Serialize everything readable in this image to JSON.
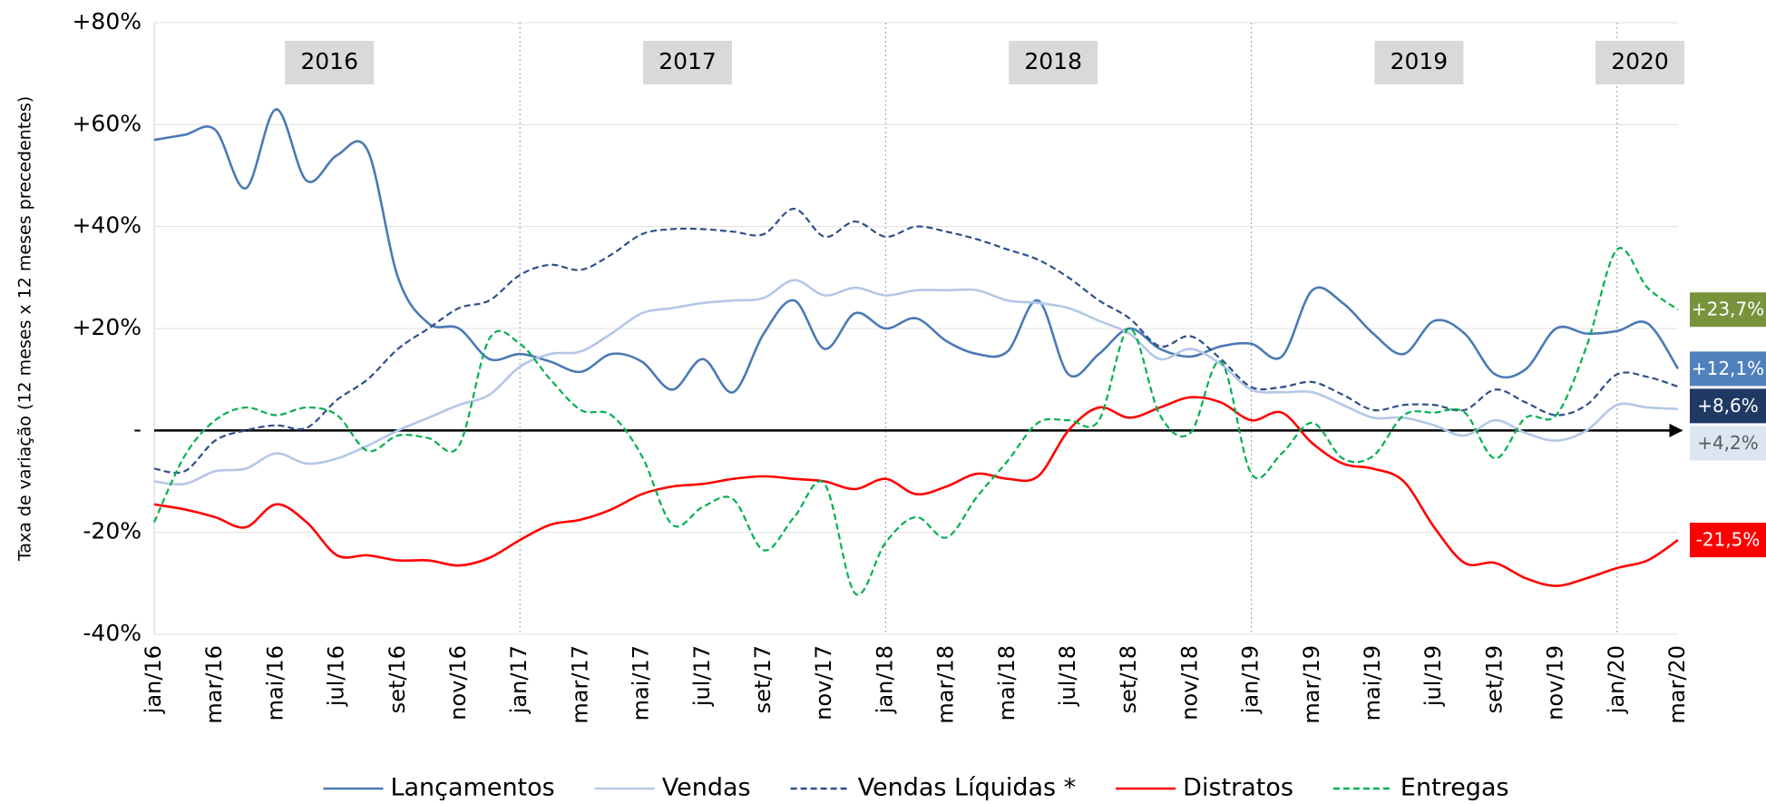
{
  "chart_data": {
    "type": "line",
    "y_label": "Taxa de variação (12 meses x 12 meses precedentes)",
    "periods": [
      "2016",
      "2017",
      "2018",
      "2019",
      "2020"
    ],
    "categories": [
      "jan/16",
      null,
      "mar/16",
      null,
      "mai/16",
      null,
      "jul/16",
      null,
      "set/16",
      null,
      "nov/16",
      null,
      "jan/17",
      null,
      "mar/17",
      null,
      "mai/17",
      null,
      "jul/17",
      null,
      "set/17",
      null,
      "nov/17",
      null,
      "jan/18",
      null,
      "mar/18",
      null,
      "mai/18",
      null,
      "jul/18",
      null,
      "set/18",
      null,
      "nov/18",
      null,
      "jan/19",
      null,
      "mar/19",
      null,
      "mai/19",
      null,
      "jul/19",
      null,
      "set/19",
      null,
      "nov/19",
      null,
      "jan/20",
      null,
      "mar/20"
    ],
    "ylim": [
      -40,
      80
    ],
    "yticks": [
      {
        "value": -40,
        "label": "-40%"
      },
      {
        "value": -20,
        "label": "-20%"
      },
      {
        "value": 0,
        "label": "-"
      },
      {
        "value": 20,
        "label": "+20%"
      },
      {
        "value": 40,
        "label": "+40%"
      },
      {
        "value": 60,
        "label": "+60%"
      },
      {
        "value": 80,
        "label": "+80%"
      }
    ],
    "grid": true,
    "series": [
      {
        "name": "Lançamentos",
        "color": "#4a7ab5",
        "dashed": false,
        "label_color": "#4f81bd",
        "label_text_color": "#ffffff",
        "values": [
          57,
          58,
          59,
          47.5,
          63,
          49,
          54,
          55,
          30,
          21,
          20,
          14,
          15,
          13.5,
          11.5,
          15,
          13.5,
          8,
          14,
          7.5,
          19,
          25.5,
          16,
          23,
          20,
          22,
          17.5,
          15,
          15.5,
          25.5,
          11,
          15,
          20,
          16,
          14.5,
          16.5,
          17,
          14.5,
          27.5,
          25,
          19,
          15,
          21.5,
          19,
          11,
          12,
          20,
          19,
          19.5,
          21,
          12.1
        ],
        "value_labels": [
          null,
          null,
          null,
          null,
          null,
          null,
          null,
          null,
          null,
          null,
          null,
          null,
          null,
          null,
          null,
          null,
          null,
          null,
          null,
          null,
          null,
          null,
          null,
          null,
          null,
          null,
          null,
          null,
          null,
          null,
          null,
          null,
          null,
          null,
          null,
          null,
          null,
          null,
          null,
          null,
          null,
          null,
          null,
          null,
          null,
          null,
          null,
          null,
          null,
          null,
          "+12,1%"
        ]
      },
      {
        "name": "Vendas",
        "color": "#b4c7e7",
        "dashed": false,
        "label_color": "#dce6f2",
        "label_text_color": "#595959",
        "values": [
          -10,
          -10.5,
          -8,
          -7.5,
          -4.5,
          -6.5,
          -5.5,
          -3,
          0,
          2.5,
          5,
          7,
          12.5,
          15,
          15.5,
          19,
          23,
          24,
          25,
          25.5,
          26,
          29.5,
          26.5,
          28,
          26.5,
          27.5,
          27.5,
          27.5,
          25.5,
          25,
          24,
          21.5,
          19,
          14,
          16,
          13,
          8,
          7.5,
          7.5,
          5,
          2.5,
          2.5,
          1,
          -1,
          2,
          -0.5,
          -2,
          0,
          5,
          4.5,
          4.2
        ],
        "value_labels": [
          null,
          null,
          null,
          null,
          null,
          null,
          null,
          null,
          null,
          null,
          null,
          null,
          null,
          null,
          null,
          null,
          null,
          null,
          null,
          null,
          null,
          null,
          null,
          null,
          null,
          null,
          null,
          null,
          null,
          null,
          null,
          null,
          null,
          null,
          null,
          null,
          null,
          null,
          null,
          null,
          null,
          null,
          null,
          null,
          null,
          null,
          null,
          null,
          null,
          null,
          "+4,2%"
        ]
      },
      {
        "name": "Vendas Líquidas *",
        "color": "#2f4f8a",
        "dashed": true,
        "label_color": "#1f3864",
        "label_text_color": "#ffffff",
        "values": [
          -7.5,
          -8,
          -2,
          0,
          1,
          0.5,
          6,
          10,
          16,
          20,
          24,
          25.5,
          30.5,
          32.5,
          31.5,
          34.5,
          38.5,
          39.5,
          39.5,
          39,
          38.5,
          43.5,
          38,
          41,
          38,
          40,
          39,
          37.5,
          35.5,
          33.5,
          30,
          25.5,
          22,
          16.5,
          18.5,
          14,
          8.5,
          8.5,
          9.5,
          7,
          4,
          5,
          5,
          4,
          8,
          5.5,
          3,
          5,
          11,
          10.5,
          8.6
        ],
        "value_labels": [
          null,
          null,
          null,
          null,
          null,
          null,
          null,
          null,
          null,
          null,
          null,
          null,
          null,
          null,
          null,
          null,
          null,
          null,
          null,
          null,
          null,
          null,
          null,
          null,
          null,
          null,
          null,
          null,
          null,
          null,
          null,
          null,
          null,
          null,
          null,
          null,
          null,
          null,
          null,
          null,
          null,
          null,
          null,
          null,
          null,
          null,
          null,
          null,
          null,
          null,
          "+8,6%"
        ]
      },
      {
        "name": "Distratos",
        "color": "#ff0000",
        "dashed": false,
        "label_color": "#ff0000",
        "label_text_color": "#ffffff",
        "values": [
          -14.5,
          -15.5,
          -17,
          -19,
          -14.5,
          -18,
          -24.5,
          -24.5,
          -25.5,
          -25.5,
          -26.5,
          -25,
          -21.5,
          -18.5,
          -17.5,
          -15.5,
          -12.5,
          -11,
          -10.5,
          -9.5,
          -9,
          -9.5,
          -10,
          -11.5,
          -9.5,
          -12.5,
          -11,
          -8.5,
          -9.5,
          -9,
          0,
          4.5,
          2.5,
          4.5,
          6.5,
          5.5,
          2,
          3.5,
          -2.5,
          -6.5,
          -7.5,
          -10,
          -19,
          -26,
          -26,
          -29,
          -30.5,
          -29,
          -27,
          -25.5,
          -21.5
        ],
        "value_labels": [
          null,
          null,
          null,
          null,
          null,
          null,
          null,
          null,
          null,
          null,
          null,
          null,
          null,
          null,
          null,
          null,
          null,
          null,
          null,
          null,
          null,
          null,
          null,
          null,
          null,
          null,
          null,
          null,
          null,
          null,
          null,
          null,
          null,
          null,
          null,
          null,
          null,
          null,
          null,
          null,
          null,
          null,
          null,
          null,
          null,
          null,
          null,
          null,
          null,
          null,
          "-21,5%"
        ]
      },
      {
        "name": "Entregas",
        "color": "#00b050",
        "dashed": true,
        "label_color": "#77933c",
        "label_text_color": "#ffffff",
        "values": [
          -18,
          -5,
          2,
          4.5,
          3,
          4.5,
          3,
          -4,
          -1,
          -1.5,
          -3,
          18,
          17,
          10,
          4,
          3,
          -5,
          -18.5,
          -15,
          -13.5,
          -23.5,
          -17,
          -10.5,
          -32,
          -22,
          -17,
          -21,
          -13,
          -6,
          1.5,
          2,
          2,
          20,
          3,
          -0.5,
          13.5,
          -8.5,
          -4.5,
          1.5,
          -5.5,
          -5,
          3,
          3.5,
          3.5,
          -5.5,
          2.5,
          3,
          16.5,
          35.5,
          28,
          23.7
        ],
        "value_labels": [
          null,
          null,
          null,
          null,
          null,
          null,
          null,
          null,
          null,
          null,
          null,
          null,
          null,
          null,
          null,
          null,
          null,
          null,
          null,
          null,
          null,
          null,
          null,
          null,
          null,
          null,
          null,
          null,
          null,
          null,
          null,
          null,
          null,
          null,
          null,
          null,
          null,
          null,
          null,
          null,
          null,
          null,
          null,
          null,
          null,
          null,
          null,
          null,
          null,
          null,
          "+23,7%"
        ]
      }
    ]
  }
}
